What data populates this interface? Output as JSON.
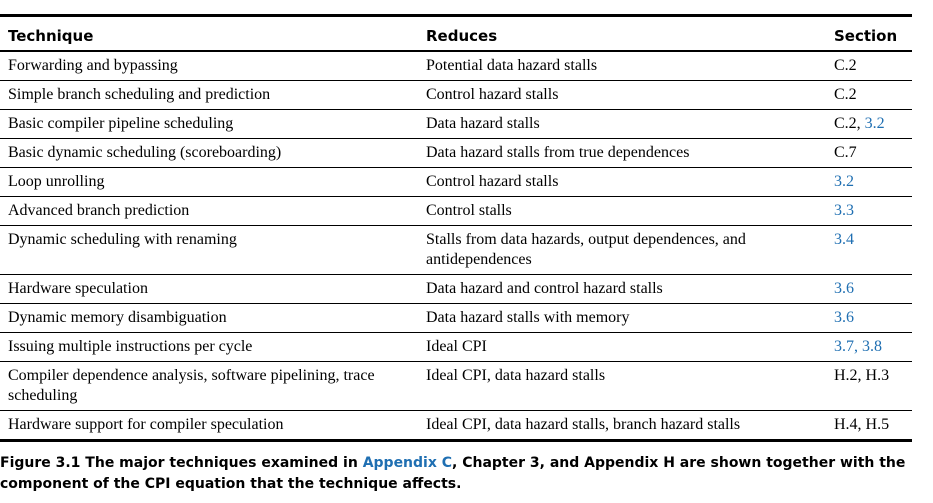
{
  "table": {
    "headers": [
      "Technique",
      "Reduces",
      "Section"
    ],
    "rows": [
      {
        "technique": "Forwarding and bypassing",
        "reduces": "Potential data hazard stalls",
        "section_plain": "C.2",
        "section_link": ""
      },
      {
        "technique": "Simple branch scheduling and prediction",
        "reduces": "Control hazard stalls",
        "section_plain": "C.2",
        "section_link": ""
      },
      {
        "technique": "Basic compiler pipeline scheduling",
        "reduces": "Data hazard stalls",
        "section_plain": "C.2, ",
        "section_link": "3.2"
      },
      {
        "technique": "Basic dynamic scheduling (scoreboarding)",
        "reduces": "Data hazard stalls from true dependences",
        "section_plain": "C.7",
        "section_link": ""
      },
      {
        "technique": "Loop unrolling",
        "reduces": "Control hazard stalls",
        "section_plain": "",
        "section_link": "3.2"
      },
      {
        "technique": "Advanced branch prediction",
        "reduces": "Control stalls",
        "section_plain": "",
        "section_link": "3.3"
      },
      {
        "technique": "Dynamic scheduling with renaming",
        "reduces": "Stalls from data hazards, output dependences, and antidependences",
        "section_plain": "",
        "section_link": "3.4"
      },
      {
        "technique": "Hardware speculation",
        "reduces": "Data hazard and control hazard stalls",
        "section_plain": "",
        "section_link": "3.6"
      },
      {
        "technique": "Dynamic memory disambiguation",
        "reduces": "Data hazard stalls with memory",
        "section_plain": "",
        "section_link": "3.6"
      },
      {
        "technique": "Issuing multiple instructions per cycle",
        "reduces": "Ideal CPI",
        "section_plain": "",
        "section_link": "3.7, 3.8"
      },
      {
        "technique": "Compiler dependence analysis, software pipelining, trace scheduling",
        "reduces": "Ideal CPI, data hazard stalls",
        "section_plain": "H.2, H.3",
        "section_link": ""
      },
      {
        "technique": "Hardware support for compiler speculation",
        "reduces": "Ideal CPI, data hazard stalls, branch hazard stalls",
        "section_plain": "H.4, H.5",
        "section_link": ""
      }
    ]
  },
  "caption": {
    "prefix": "Figure 3.1  The major techniques examined in ",
    "link": "Appendix C",
    "suffix": ", Chapter 3, and Appendix H are shown together with the component of the CPI equation that the technique affects."
  },
  "colors": {
    "link": "#1f6fb2",
    "text": "#000000"
  }
}
